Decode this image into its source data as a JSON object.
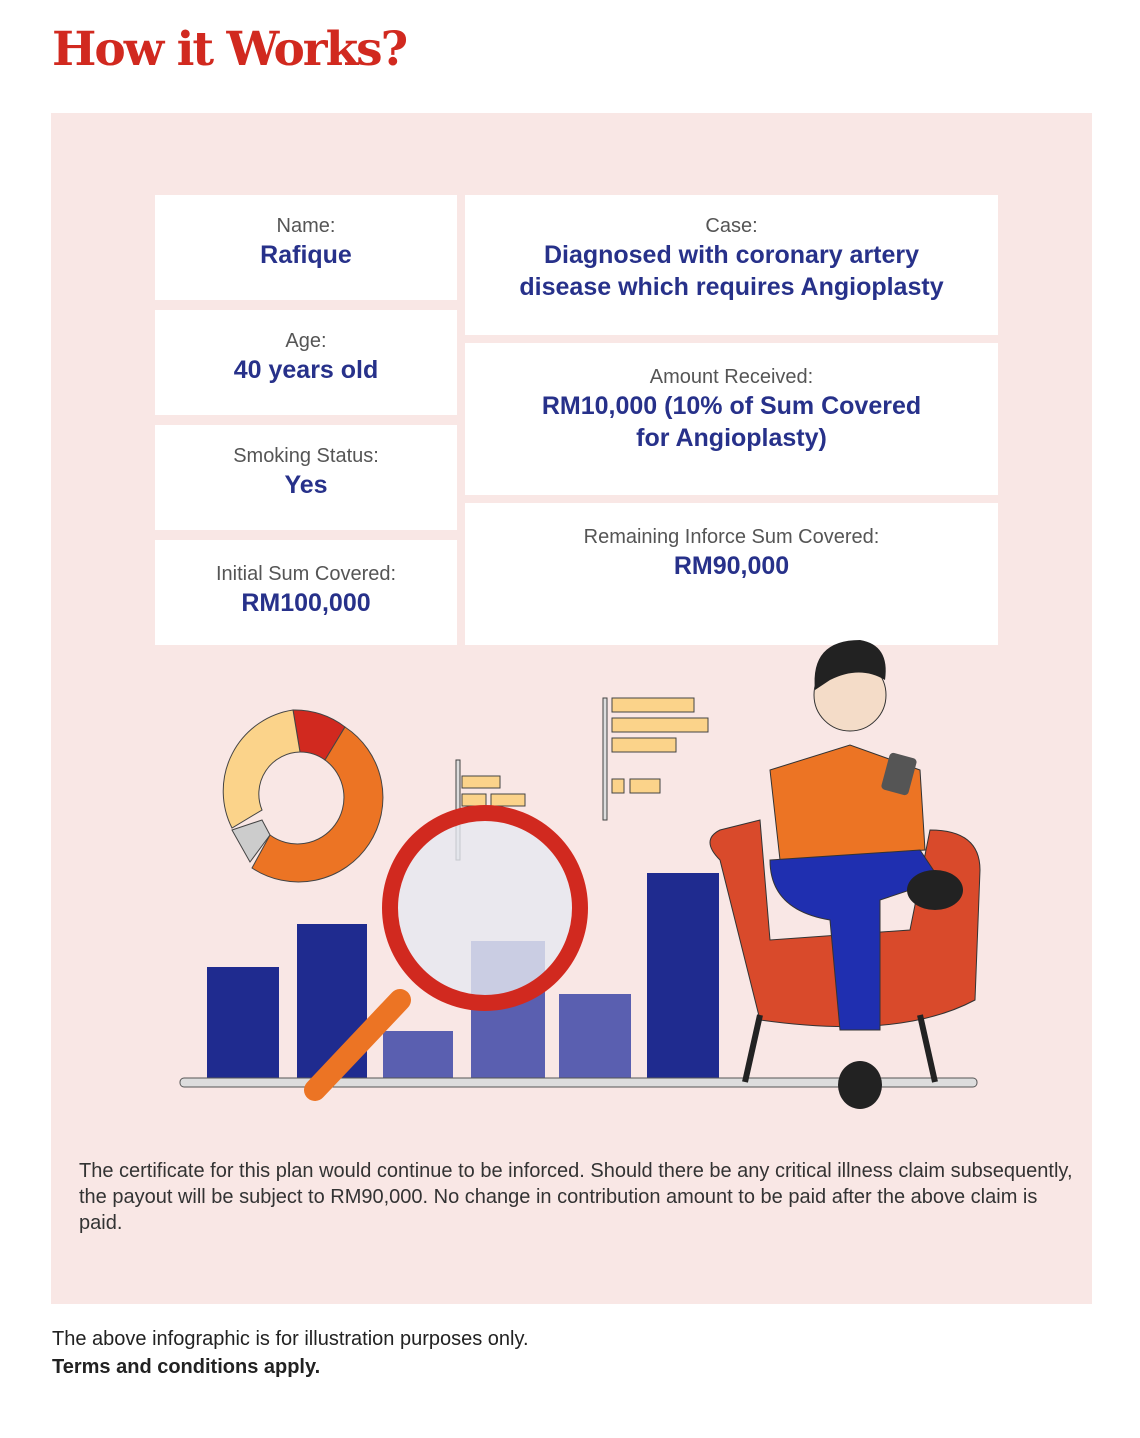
{
  "title": "How it Works?",
  "cards": {
    "name": {
      "label": "Name:",
      "value": "Rafique"
    },
    "age": {
      "label": "Age:",
      "value": "40 years old"
    },
    "smoking": {
      "label": "Smoking Status:",
      "value": "Yes"
    },
    "initial_sum": {
      "label": "Initial Sum Covered:",
      "value": "RM100,000"
    },
    "case": {
      "label": "Case:",
      "value_line1": "Diagnosed with coronary artery",
      "value_line2": "disease which requires Angioplasty"
    },
    "amount": {
      "label": "Amount Received:",
      "value_line1": "RM10,000 (10% of Sum Covered",
      "value_line2": "for Angioplasty)"
    },
    "remaining": {
      "label": "Remaining Inforce Sum Covered:",
      "value": "RM90,000"
    }
  },
  "note": "The certificate for this plan would continue to be inforced. Should there be any critical illness claim subsequently, the payout will be subject to RM90,000. No change in contribution amount to be paid after the above claim is paid.",
  "footer": {
    "disclaimer": "The above infographic is for illustration purposes only.",
    "terms": "Terms and conditions apply."
  },
  "colors": {
    "title": "#d1291f",
    "panel": "#f9e7e5",
    "value_text": "#27318a"
  },
  "illustration": "man-on-armchair-with-phone-charts-magnifier"
}
